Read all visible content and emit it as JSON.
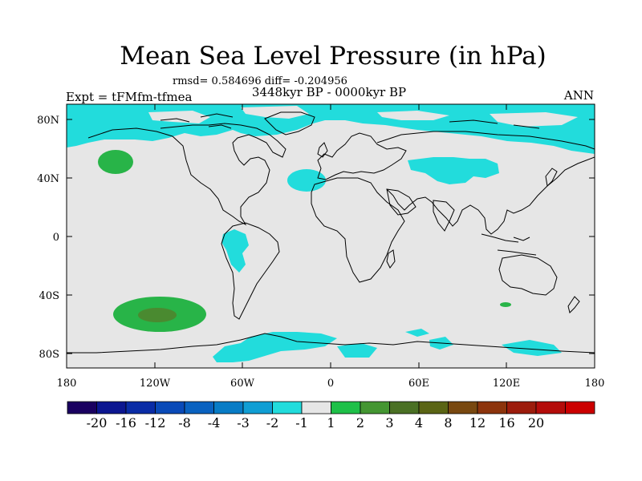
{
  "header": {
    "title": "Mean Sea Level Pressure (in hPa)",
    "stats": "rmsd= 0.584696 diff= -0.204956",
    "period": "3448kyr BP - 0000kyr BP",
    "experiment": "Expt = tFMfm-tfmea",
    "season": "ANN"
  },
  "map": {
    "y_labels": [
      "80N",
      "40N",
      "0",
      "40S",
      "80S"
    ],
    "x_labels": [
      "180",
      "120W",
      "60W",
      "0",
      "60E",
      "120E",
      "180"
    ],
    "regions": [
      {
        "name": "arctic-anomaly",
        "value_range": "-2 to -1",
        "color": "#22dcdc"
      },
      {
        "name": "north-pacific-anomaly",
        "value_range": "1 to 2",
        "color": "#28b448"
      },
      {
        "name": "south-pacific-anomaly",
        "value_range": "2 to 3",
        "color": "#4a8a30"
      },
      {
        "name": "antarctic-anomaly",
        "value_range": "-2 to -1",
        "color": "#22dcdc"
      }
    ]
  },
  "colorbar": {
    "colors": [
      "#1a0060",
      "#0c1690",
      "#0a2ca6",
      "#0a4ab8",
      "#0a62c0",
      "#087cc6",
      "#109ed4",
      "#22dcdc",
      "#e6e6e6",
      "#1ec048",
      "#449632",
      "#4a7024",
      "#5a6414",
      "#784810",
      "#8c340c",
      "#9c1c0c",
      "#b40c0a",
      "#cc0000"
    ],
    "labels": [
      "-20",
      "-16",
      "-12",
      "-8",
      "-4",
      "-3",
      "-2",
      "-1",
      "1",
      "2",
      "3",
      "4",
      "8",
      "12",
      "16",
      "20"
    ]
  }
}
